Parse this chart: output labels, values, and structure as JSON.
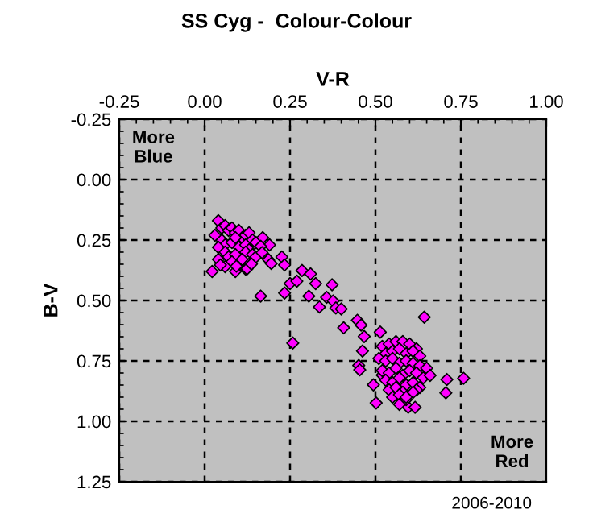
{
  "chart_data": {
    "type": "scatter",
    "title": "SS Cyg -  Colour-Colour",
    "xlabel": "V-R",
    "ylabel": "B-V",
    "xlim": [
      -0.25,
      1.0
    ],
    "xticks": [
      {
        "value": -0.25,
        "label": "-0.25"
      },
      {
        "value": 0,
        "label": "0.00"
      },
      {
        "value": 0.25,
        "label": "0.25"
      },
      {
        "value": 0.5,
        "label": "0.50"
      },
      {
        "value": 0.75,
        "label": "0.75"
      },
      {
        "value": 1.0,
        "label": "1.00"
      }
    ],
    "ylim": [
      1.25,
      -0.25
    ],
    "yticks": [
      {
        "value": -0.25,
        "label": "-0.25"
      },
      {
        "value": 0,
        "label": "0.00"
      },
      {
        "value": 0.25,
        "label": "0.25"
      },
      {
        "value": 0.5,
        "label": "0.50"
      },
      {
        "value": 0.75,
        "label": "0.75"
      },
      {
        "value": 1.0,
        "label": "1.00"
      },
      {
        "value": 1.25,
        "label": "1.25"
      }
    ],
    "grid": true,
    "marker": "diamond",
    "annotations": [
      "More\nBlue",
      "More\nRed",
      "2006-2010"
    ],
    "series": [
      {
        "color": "#ff00ff",
        "x": [
          0.04,
          0.05,
          0.06,
          0.07,
          0.08,
          0.09,
          0.1,
          0.11,
          0.12,
          0.13,
          0.14,
          0.05,
          0.06,
          0.08,
          0.09,
          0.1,
          0.12,
          0.13,
          0.15,
          0.03,
          0.04,
          0.06,
          0.07,
          0.09,
          0.12,
          0.14,
          0.17,
          0.19,
          0.08,
          0.11,
          0.13,
          0.15,
          0.04,
          0.06,
          0.09,
          0.12,
          0.022,
          0.046,
          0.093,
          0.124,
          0.137,
          0.187,
          0.195,
          0.164,
          0.168,
          0.226,
          0.234,
          0.164,
          0.234,
          0.285,
          0.31,
          0.325,
          0.25,
          0.27,
          0.258,
          0.305,
          0.336,
          0.357,
          0.373,
          0.376,
          0.384,
          0.4,
          0.407,
          0.447,
          0.458,
          0.467,
          0.462,
          0.451,
          0.454,
          0.514,
          0.643,
          0.709,
          0.758,
          0.706,
          0.502,
          0.596,
          0.616,
          0.494,
          0.52,
          0.52,
          0.54,
          0.56,
          0.58,
          0.6,
          0.62,
          0.53,
          0.55,
          0.57,
          0.59,
          0.61,
          0.63,
          0.51,
          0.53,
          0.55,
          0.57,
          0.59,
          0.61,
          0.63,
          0.65,
          0.52,
          0.54,
          0.56,
          0.58,
          0.6,
          0.62,
          0.64,
          0.53,
          0.55,
          0.57,
          0.59,
          0.61,
          0.63,
          0.66,
          0.54,
          0.56,
          0.58,
          0.62,
          0.55,
          0.57,
          0.59,
          0.61,
          0.57,
          0.59
        ],
        "values": [
          0.17,
          0.2,
          0.19,
          0.21,
          0.2,
          0.22,
          0.21,
          0.24,
          0.23,
          0.22,
          0.25,
          0.25,
          0.27,
          0.26,
          0.24,
          0.28,
          0.27,
          0.29,
          0.26,
          0.23,
          0.28,
          0.3,
          0.32,
          0.31,
          0.3,
          0.31,
          0.24,
          0.27,
          0.34,
          0.33,
          0.35,
          0.32,
          0.33,
          0.36,
          0.38,
          0.37,
          0.38,
          0.353,
          0.358,
          0.369,
          0.349,
          0.331,
          0.347,
          0.276,
          0.302,
          0.32,
          0.353,
          0.482,
          0.469,
          0.376,
          0.39,
          0.43,
          0.43,
          0.42,
          0.676,
          0.482,
          0.527,
          0.487,
          0.435,
          0.502,
          0.531,
          0.535,
          0.613,
          0.582,
          0.602,
          0.649,
          0.709,
          0.769,
          0.787,
          0.631,
          0.569,
          0.827,
          0.822,
          0.882,
          0.924,
          0.942,
          0.942,
          0.849,
          0.809,
          0.69,
          0.68,
          0.67,
          0.67,
          0.68,
          0.7,
          0.72,
          0.71,
          0.7,
          0.72,
          0.71,
          0.73,
          0.74,
          0.75,
          0.74,
          0.76,
          0.75,
          0.76,
          0.77,
          0.78,
          0.79,
          0.8,
          0.78,
          0.81,
          0.79,
          0.8,
          0.82,
          0.83,
          0.84,
          0.82,
          0.85,
          0.84,
          0.86,
          0.81,
          0.87,
          0.86,
          0.88,
          0.87,
          0.9,
          0.89,
          0.91,
          0.88,
          0.93,
          0.9
        ]
      }
    ]
  }
}
